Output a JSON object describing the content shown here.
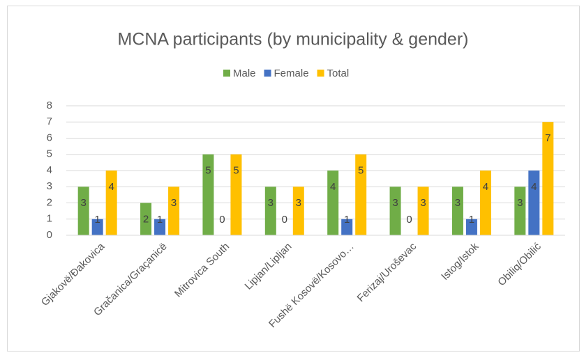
{
  "chart_data": {
    "type": "bar",
    "title": "MCNA participants (by municipality & gender)",
    "categories": [
      "Gjakovë/Đakovica",
      "Gračanica/Graçanicë",
      "Mitrovica South",
      "Lipjan/Lipljan",
      "Fushë Kosovë/Kosovo…",
      "Ferizaj/Uroševac",
      "Istog/Istok",
      "Obiliq/Obilić"
    ],
    "series": [
      {
        "name": "Male",
        "color": "#70ad47",
        "values": [
          3,
          2,
          5,
          3,
          4,
          3,
          3,
          3
        ]
      },
      {
        "name": "Female",
        "color": "#4472c4",
        "values": [
          1,
          1,
          0,
          0,
          1,
          0,
          1,
          4
        ]
      },
      {
        "name": "Total",
        "color": "#ffc000",
        "values": [
          4,
          3,
          5,
          3,
          5,
          3,
          4,
          7
        ]
      }
    ],
    "ylim": [
      0,
      8
    ],
    "yticks": [
      0,
      1,
      2,
      3,
      4,
      5,
      6,
      7,
      8
    ],
    "grid": true,
    "legend": "top"
  }
}
